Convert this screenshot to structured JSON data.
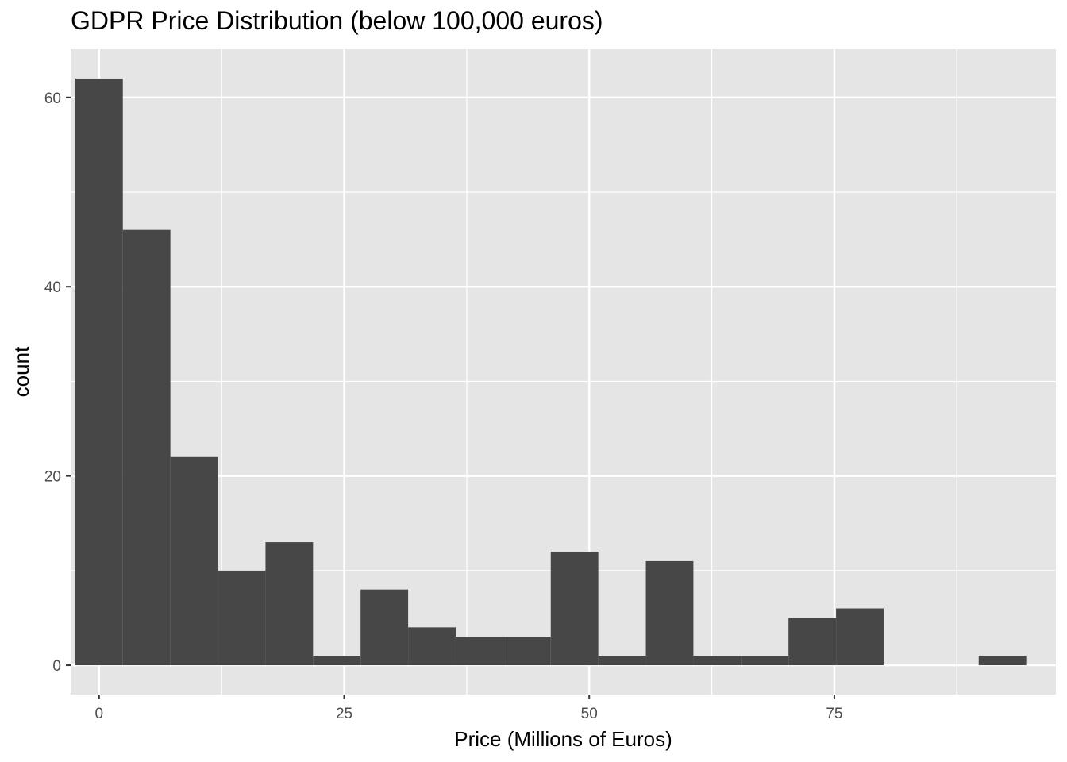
{
  "chart_data": {
    "type": "bar",
    "title": "GDPR Price Distribution (below 100,000 euros)",
    "xlabel": "Price (Millions of Euros)",
    "ylabel": "count",
    "xlim": [
      -2.9,
      97.6
    ],
    "ylim": [
      -3.1,
      65.1
    ],
    "x_ticks": [
      0,
      25,
      50,
      75
    ],
    "x_tick_labels": [
      "0",
      "25",
      "50",
      "75"
    ],
    "y_ticks": [
      0,
      20,
      40,
      60
    ],
    "y_tick_labels": [
      "0",
      "20",
      "40",
      "60"
    ],
    "bin_width": 4.85,
    "bins": [
      {
        "x": 0.0,
        "count": 62
      },
      {
        "x": 4.85,
        "count": 46
      },
      {
        "x": 9.7,
        "count": 22
      },
      {
        "x": 14.55,
        "count": 10
      },
      {
        "x": 19.4,
        "count": 13
      },
      {
        "x": 24.25,
        "count": 1
      },
      {
        "x": 29.1,
        "count": 8
      },
      {
        "x": 33.95,
        "count": 4
      },
      {
        "x": 38.8,
        "count": 3
      },
      {
        "x": 43.65,
        "count": 3
      },
      {
        "x": 48.5,
        "count": 12
      },
      {
        "x": 53.35,
        "count": 1
      },
      {
        "x": 58.2,
        "count": 11
      },
      {
        "x": 63.05,
        "count": 1
      },
      {
        "x": 67.9,
        "count": 1
      },
      {
        "x": 72.75,
        "count": 5
      },
      {
        "x": 77.6,
        "count": 6
      },
      {
        "x": 82.45,
        "count": 0
      },
      {
        "x": 87.3,
        "count": 0
      },
      {
        "x": 92.15,
        "count": 1
      }
    ],
    "grid": true,
    "colors": {
      "panel": "#e5e5e5",
      "grid": "#ffffff",
      "bar": "#474747",
      "tick": "#4d4d4d"
    }
  }
}
